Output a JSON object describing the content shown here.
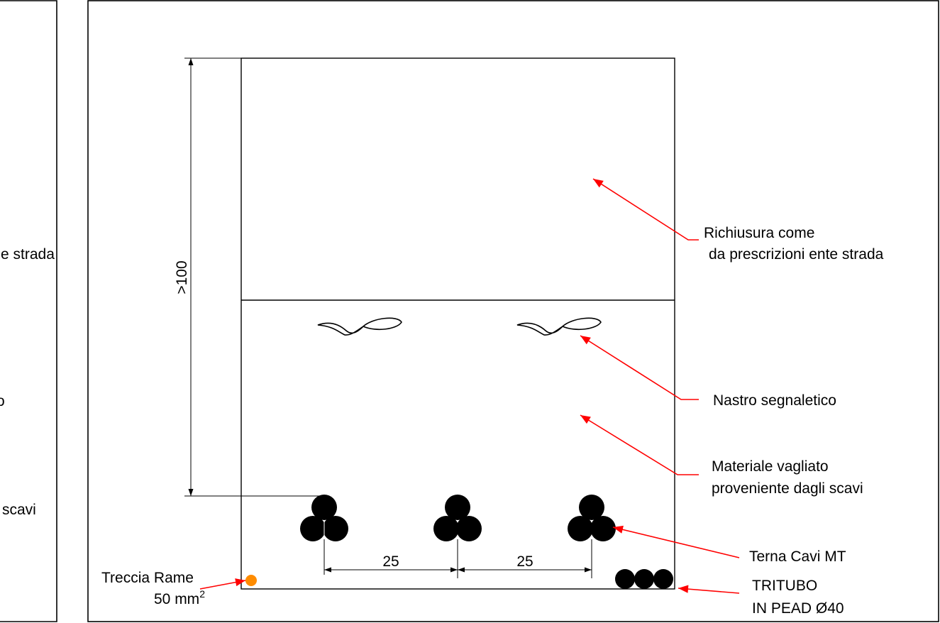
{
  "left_panel_fragments": {
    "strada_fragment": "e strada",
    "o_fragment": "o",
    "scavi_fragment": "scavi"
  },
  "dimensions": {
    "depth": ">100",
    "spacing_left": "25",
    "spacing_right": "25"
  },
  "annotations": {
    "richiusura_line1": "Richiusura come",
    "richiusura_line2": "da prescrizioni ente strada",
    "nastro": "Nastro segnaletico",
    "materiale_line1": "Materiale vagliato",
    "materiale_line2": "proveniente dagli scavi",
    "terna": "Terna Cavi MT",
    "tritubo_line1": "TRITUBO",
    "tritubo_line2": "IN PEAD Ø40",
    "treccia_line1": "Treccia Rame",
    "treccia_line2": "50 mm",
    "treccia_superscript": "2"
  },
  "colors": {
    "lines": "#000000",
    "leaders": "#ff0000",
    "copper_braid": "#ff8c00"
  }
}
